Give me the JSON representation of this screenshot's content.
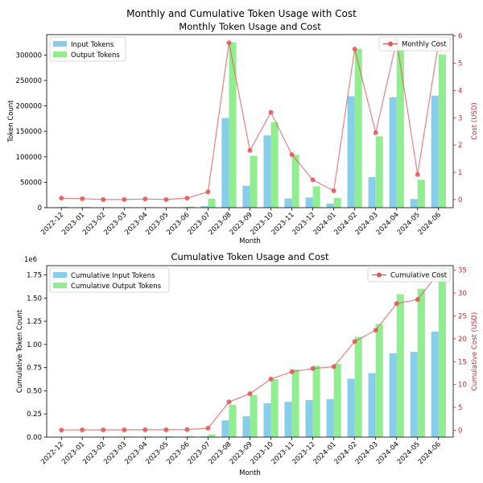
{
  "figure": {
    "suptitle": "Monthly and Cumulative Token Usage with Cost"
  },
  "colors": {
    "input": "#87CEEB",
    "output": "#90EE90",
    "cost": "#E05555",
    "axis": "#000000",
    "cost_axis": "#D62728"
  },
  "chart_data": [
    {
      "type": "bar",
      "title": "Monthly Token Usage and Cost",
      "xlabel": "Month",
      "ylabel": "Token Count",
      "y2label": "Cost (USD)",
      "categories": [
        "2022-12",
        "2023-01",
        "2023-02",
        "2023-03",
        "2023-04",
        "2023-05",
        "2023-06",
        "2023-07",
        "2023-08",
        "2023-09",
        "2023-10",
        "2023-11",
        "2023-12",
        "2024-01",
        "2024-02",
        "2024-03",
        "2024-04",
        "2024-05",
        "2024-06"
      ],
      "ylim": [
        0,
        340000
      ],
      "yticks": [
        0,
        50000,
        100000,
        150000,
        200000,
        250000,
        300000
      ],
      "ytick_labels": [
        "0",
        "50000",
        "100000",
        "150000",
        "200000",
        "250000",
        "300000"
      ],
      "y2lim": [
        -0.3,
        6.05
      ],
      "y2ticks": [
        0,
        1,
        2,
        3,
        4,
        5,
        6
      ],
      "y2tick_labels": [
        "0",
        "1",
        "2",
        "3",
        "4",
        "5",
        "6"
      ],
      "legend_bars_position": "top-left",
      "legend_line_position": "top-right",
      "series": [
        {
          "name": "Input Tokens",
          "values": [
            1000,
            800,
            500,
            400,
            600,
            500,
            1000,
            3000,
            176000,
            43000,
            142000,
            18000,
            20000,
            8000,
            219000,
            60000,
            217000,
            17000,
            220000
          ]
        },
        {
          "name": "Output Tokens",
          "values": [
            2000,
            1500,
            1000,
            800,
            1200,
            1000,
            2000,
            18000,
            325000,
            102000,
            168000,
            104000,
            42000,
            19000,
            312000,
            140000,
            318000,
            55000,
            301000
          ]
        }
      ],
      "line": {
        "name": "Monthly Cost",
        "values": [
          0.05,
          0.03,
          0.0,
          0.0,
          0.02,
          0.0,
          0.05,
          0.28,
          5.75,
          1.8,
          3.2,
          1.65,
          0.72,
          0.32,
          5.52,
          2.45,
          5.82,
          0.92,
          5.76
        ]
      }
    },
    {
      "type": "bar",
      "title": "Cumulative Token Usage and Cost",
      "xlabel": "Month",
      "ylabel": "Cumulative Token Count",
      "y2label": "Cumulative Cost (USD)",
      "offset_text": "1e6",
      "categories": [
        "2022-12",
        "2023-01",
        "2023-02",
        "2023-03",
        "2023-04",
        "2023-05",
        "2023-06",
        "2023-07",
        "2023-08",
        "2023-09",
        "2023-10",
        "2023-11",
        "2023-12",
        "2024-01",
        "2024-02",
        "2024-03",
        "2024-04",
        "2024-05",
        "2024-06"
      ],
      "ylim": [
        0,
        1.85
      ],
      "yticks": [
        0,
        0.25,
        0.5,
        0.75,
        1.0,
        1.25,
        1.5,
        1.75
      ],
      "ytick_labels": [
        "0.00",
        "0.25",
        "0.50",
        "0.75",
        "1.00",
        "1.25",
        "1.50",
        "1.75"
      ],
      "y2lim": [
        -1.5,
        36
      ],
      "y2ticks": [
        0,
        5,
        10,
        15,
        20,
        25,
        30,
        35
      ],
      "y2tick_labels": [
        "0",
        "5",
        "10",
        "15",
        "20",
        "25",
        "30",
        "35"
      ],
      "legend_bars_position": "top-left",
      "legend_line_position": "top-right",
      "series": [
        {
          "name": "Cumulative Input Tokens",
          "values": [
            0.001,
            0.002,
            0.002,
            0.003,
            0.003,
            0.004,
            0.005,
            0.008,
            0.18,
            0.225,
            0.365,
            0.38,
            0.4,
            0.41,
            0.63,
            0.69,
            0.905,
            0.92,
            1.14
          ]
        },
        {
          "name": "Cumulative Output Tokens",
          "values": [
            0.002,
            0.004,
            0.005,
            0.006,
            0.007,
            0.008,
            0.01,
            0.028,
            0.35,
            0.455,
            0.625,
            0.73,
            0.77,
            0.79,
            1.08,
            1.22,
            1.54,
            1.6,
            1.82
          ]
        }
      ],
      "line": {
        "name": "Cumulative Cost",
        "values": [
          0.05,
          0.08,
          0.08,
          0.08,
          0.1,
          0.1,
          0.15,
          0.45,
          6.2,
          8.0,
          11.2,
          12.8,
          13.5,
          13.9,
          19.4,
          21.9,
          27.7,
          28.6,
          34.4
        ]
      }
    }
  ]
}
